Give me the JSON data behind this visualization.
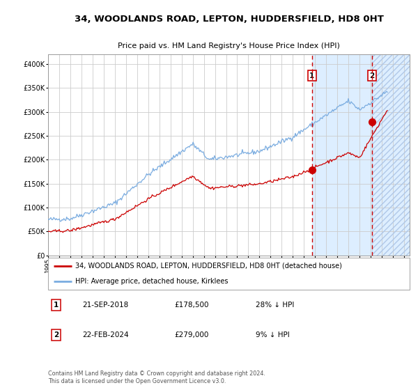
{
  "title": "34, WOODLANDS ROAD, LEPTON, HUDDERSFIELD, HD8 0HT",
  "subtitle": "Price paid vs. HM Land Registry's House Price Index (HPI)",
  "legend_line1": "34, WOODLANDS ROAD, LEPTON, HUDDERSFIELD, HD8 0HT (detached house)",
  "legend_line2": "HPI: Average price, detached house, Kirklees",
  "annotation1_date": "21-SEP-2018",
  "annotation1_price": "£178,500",
  "annotation1_hpi": "28% ↓ HPI",
  "annotation2_date": "22-FEB-2024",
  "annotation2_price": "£279,000",
  "annotation2_hpi": "9% ↓ HPI",
  "footer": "Contains HM Land Registry data © Crown copyright and database right 2024.\nThis data is licensed under the Open Government Licence v3.0.",
  "red_color": "#cc0000",
  "blue_color": "#7aace0",
  "bg_color": "#ffffff",
  "grid_color": "#cccccc",
  "highlight_bg": "#ddeeff",
  "ylim": [
    0,
    420000
  ],
  "yticks": [
    0,
    50000,
    100000,
    150000,
    200000,
    250000,
    300000,
    350000,
    400000
  ],
  "xlim_start": 1995.0,
  "xlim_end": 2027.5,
  "anno1_x": 2018.72,
  "anno1_y": 178500,
  "anno2_x": 2024.13,
  "anno2_y": 279000
}
